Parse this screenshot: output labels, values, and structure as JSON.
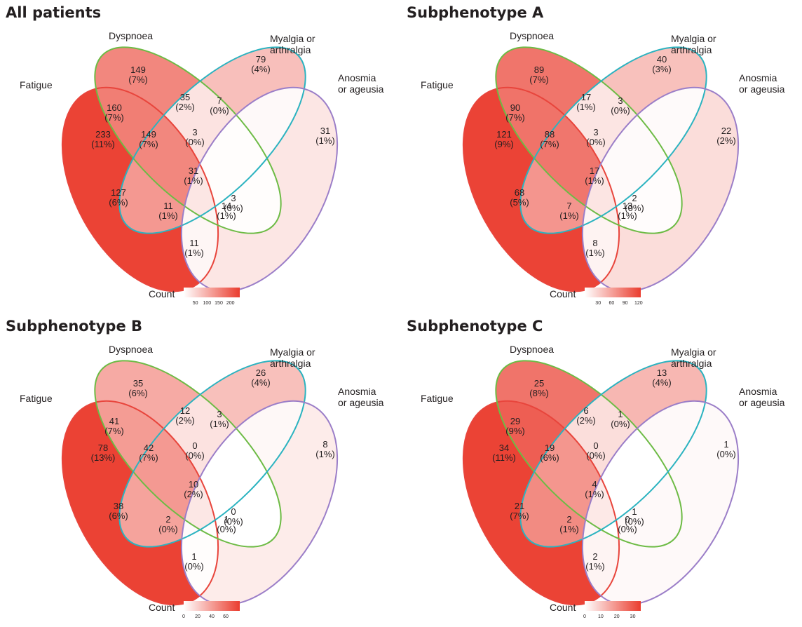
{
  "set_labels": {
    "fatigue": "Fatigue",
    "dyspnoea": "Dyspnoea",
    "myalgia": [
      "Myalgia or",
      "arthralgia"
    ],
    "anosmia": [
      "Anosmia",
      "or ageusia"
    ]
  },
  "colors": {
    "fatigue_outline": "#e8453c",
    "dyspnoea_outline": "#6dbb45",
    "myalgia_outline": "#2bb3c0",
    "anosmia_outline": "#9b7ec8",
    "fill_low": "#ffffff",
    "fill_high": "#ea3d2f"
  },
  "legend_label": "Count",
  "chart_data": [
    {
      "type": "venn",
      "title": "All patients",
      "sets": [
        "Fatigue",
        "Dyspnoea",
        "Myalgia or arthralgia",
        "Anosmia or ageusia"
      ],
      "max": 240,
      "ticks": [
        "50",
        "100",
        "150",
        "200"
      ],
      "tick_values": [
        50,
        100,
        150,
        200
      ],
      "regions": {
        "F": {
          "count": 233,
          "pct": "(11%)"
        },
        "D": {
          "count": 149,
          "pct": "(7%)"
        },
        "M": {
          "count": 79,
          "pct": "(4%)"
        },
        "A": {
          "count": 31,
          "pct": "(1%)"
        },
        "FD": {
          "count": 160,
          "pct": "(7%)"
        },
        "DM": {
          "count": 35,
          "pct": "(2%)"
        },
        "MA": {
          "count": 7,
          "pct": "(0%)"
        },
        "FDM": {
          "count": 149,
          "pct": "(7%)"
        },
        "DMA": {
          "count": 3,
          "pct": "(0%)"
        },
        "FDMA": {
          "count": 31,
          "pct": "(1%)"
        },
        "DA": {
          "count": 3,
          "pct": "(0%)"
        },
        "FM": {
          "count": 127,
          "pct": "(6%)"
        },
        "FMA": {
          "count": 11,
          "pct": "(1%)"
        },
        "FDA": {
          "count": 14,
          "pct": "(1%)"
        },
        "FA": {
          "count": 11,
          "pct": "(1%)"
        }
      }
    },
    {
      "type": "venn",
      "title": "Subphenotype A",
      "sets": [
        "Fatigue",
        "Dyspnoea",
        "Myalgia or arthralgia",
        "Anosmia or ageusia"
      ],
      "max": 125,
      "ticks": [
        "30",
        "60",
        "90",
        "120"
      ],
      "tick_values": [
        30,
        60,
        90,
        120
      ],
      "regions": {
        "F": {
          "count": 121,
          "pct": "(9%)"
        },
        "D": {
          "count": 89,
          "pct": "(7%)"
        },
        "M": {
          "count": 40,
          "pct": "(3%)"
        },
        "A": {
          "count": 22,
          "pct": "(2%)"
        },
        "FD": {
          "count": 90,
          "pct": "(7%)"
        },
        "DM": {
          "count": 17,
          "pct": "(1%)"
        },
        "MA": {
          "count": 3,
          "pct": "(0%)"
        },
        "FDM": {
          "count": 88,
          "pct": "(7%)"
        },
        "DMA": {
          "count": 3,
          "pct": "(0%)"
        },
        "FDMA": {
          "count": 17,
          "pct": "(1%)"
        },
        "DA": {
          "count": 2,
          "pct": "(0%)"
        },
        "FM": {
          "count": 68,
          "pct": "(5%)"
        },
        "FMA": {
          "count": 7,
          "pct": "(1%)"
        },
        "FDA": {
          "count": 13,
          "pct": "(1%)"
        },
        "FA": {
          "count": 8,
          "pct": "(1%)"
        }
      }
    },
    {
      "type": "venn",
      "title": "Subphenotype B",
      "sets": [
        "Fatigue",
        "Dyspnoea",
        "Myalgia or arthralgia",
        "Anosmia or ageusia"
      ],
      "max": 80,
      "ticks": [
        "0",
        "20",
        "40",
        "60"
      ],
      "tick_values": [
        0,
        20,
        40,
        60
      ],
      "regions": {
        "F": {
          "count": 78,
          "pct": "(13%)"
        },
        "D": {
          "count": 35,
          "pct": "(6%)"
        },
        "M": {
          "count": 26,
          "pct": "(4%)"
        },
        "A": {
          "count": 8,
          "pct": "(1%)"
        },
        "FD": {
          "count": 41,
          "pct": "(7%)"
        },
        "DM": {
          "count": 12,
          "pct": "(2%)"
        },
        "MA": {
          "count": 3,
          "pct": "(1%)"
        },
        "FDM": {
          "count": 42,
          "pct": "(7%)"
        },
        "DMA": {
          "count": 0,
          "pct": "(0%)"
        },
        "FDMA": {
          "count": 10,
          "pct": "(2%)"
        },
        "DA": {
          "count": 0,
          "pct": "(0%)"
        },
        "FM": {
          "count": 38,
          "pct": "(6%)"
        },
        "FMA": {
          "count": 2,
          "pct": "(0%)"
        },
        "FDA": {
          "count": 1,
          "pct": "(0%)"
        },
        "FA": {
          "count": 1,
          "pct": "(0%)"
        }
      }
    },
    {
      "type": "venn",
      "title": "Subphenotype C",
      "sets": [
        "Fatigue",
        "Dyspnoea",
        "Myalgia or arthralgia",
        "Anosmia or ageusia"
      ],
      "max": 35,
      "ticks": [
        "0",
        "10",
        "20",
        "30"
      ],
      "tick_values": [
        0,
        10,
        20,
        30
      ],
      "regions": {
        "F": {
          "count": 34,
          "pct": "(11%)"
        },
        "D": {
          "count": 25,
          "pct": "(8%)"
        },
        "M": {
          "count": 13,
          "pct": "(4%)"
        },
        "A": {
          "count": 1,
          "pct": "(0%)"
        },
        "FD": {
          "count": 29,
          "pct": "(9%)"
        },
        "DM": {
          "count": 6,
          "pct": "(2%)"
        },
        "MA": {
          "count": 1,
          "pct": "(0%)"
        },
        "FDM": {
          "count": 19,
          "pct": "(6%)"
        },
        "DMA": {
          "count": 0,
          "pct": "(0%)"
        },
        "FDMA": {
          "count": 4,
          "pct": "(1%)"
        },
        "DA": {
          "count": 1,
          "pct": "(0%)"
        },
        "FM": {
          "count": 21,
          "pct": "(7%)"
        },
        "FMA": {
          "count": 2,
          "pct": "(1%)"
        },
        "FDA": {
          "count": 0,
          "pct": "(0%)"
        },
        "FA": {
          "count": 2,
          "pct": "(1%)"
        }
      }
    }
  ]
}
